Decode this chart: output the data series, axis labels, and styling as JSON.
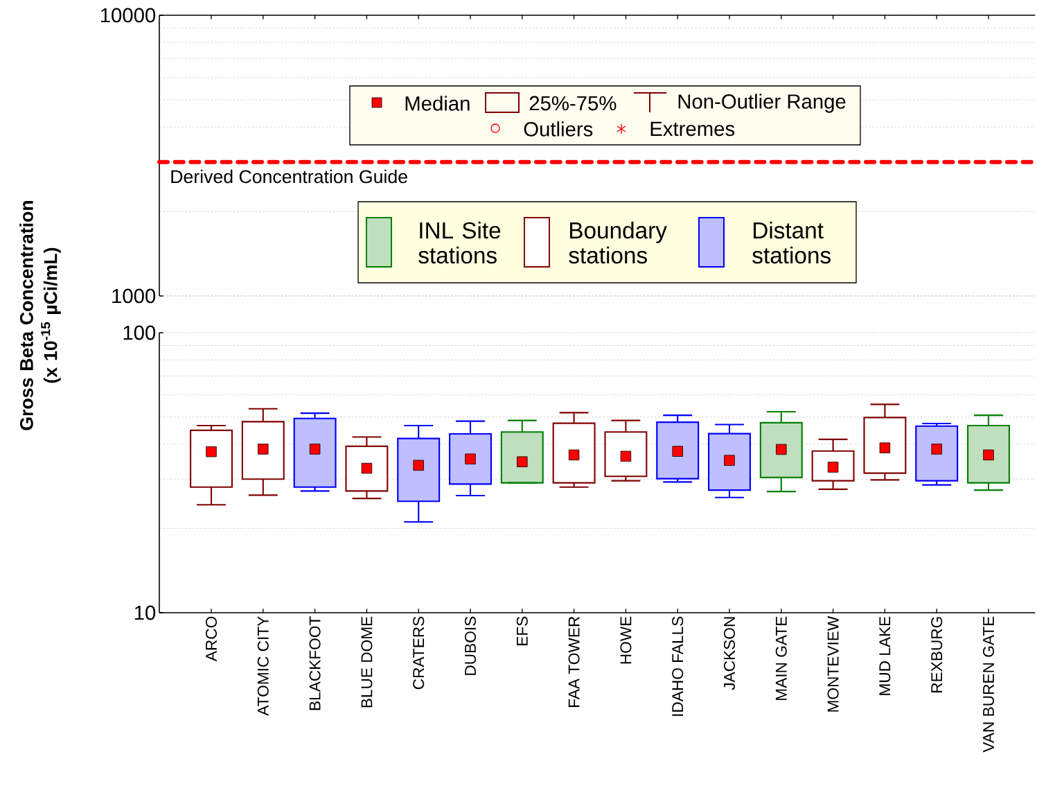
{
  "chart_data": [
    {
      "type": "box",
      "categories": [
        null,
        null,
        null,
        null,
        null,
        null,
        null,
        null,
        null,
        null,
        null,
        null,
        null,
        null,
        null,
        null
      ],
      "ylim": [
        1000,
        10000
      ],
      "yticks": [
        1000,
        10000
      ],
      "log": true,
      "grid": true,
      "tick_labels": "y",
      "ref_lines": [
        {
          "axis": "y",
          "value": 3000,
          "label": "Derived Concentration Guide",
          "color": "#ff0000",
          "line_style": "dashed"
        }
      ],
      "annotations": [
        "Median",
        "25%-75%",
        "Non-Outlier Range",
        "Outliers",
        "Extremes"
      ]
    },
    {
      "type": "box",
      "ylabel": "Gross Beta Concentration (x 10$^{-15}$ µCi/mL)",
      "categories": [
        "ARCO",
        "ATOMIC CITY",
        "BLACKFOOT",
        "BLUE DOME",
        "CRATERS",
        "DUBOIS",
        "EFS",
        "FAA TOWER",
        "HOWE",
        "IDAHO FALLS",
        "JACKSON",
        "MAIN GATE",
        "MONTEVIEW",
        "MUD LAKE",
        "REXBURG",
        "VAN BUREN GATE"
      ],
      "ylim": [
        10,
        100
      ],
      "yticks": [
        10,
        100
      ],
      "log": true,
      "grid": true,
      "legend": "top",
      "marker": "square",
      "series": [
        {
          "name": "INL Site stations",
          "color": "#008000",
          "boxes": [
            null,
            null,
            null,
            null,
            null,
            null,
            {
              "low": 29.1,
              "q1": 29.1,
              "median": 34.6,
              "q3": 44.2,
              "high": 48.6
            },
            null,
            null,
            null,
            null,
            {
              "low": 27.1,
              "q1": 30.4,
              "median": 38.3,
              "q3": 47.7,
              "high": 52.2
            },
            null,
            null,
            null,
            {
              "low": 27.4,
              "q1": 29.1,
              "median": 36.6,
              "q3": 46.6,
              "high": 50.7
            }
          ]
        },
        {
          "name": "Boundary stations",
          "color": "#800000",
          "boxes": [
            {
              "low": 24.3,
              "q1": 28.1,
              "median": 37.6,
              "q3": 44.8,
              "high": 46.6
            },
            {
              "low": 26.3,
              "q1": 30.0,
              "median": 38.4,
              "q3": 48.1,
              "high": 53.5
            },
            null,
            {
              "low": 25.6,
              "q1": 27.2,
              "median": 32.8,
              "q3": 39.3,
              "high": 42.4
            },
            null,
            null,
            null,
            {
              "low": 28.1,
              "q1": 29.1,
              "median": 36.6,
              "q3": 47.5,
              "high": 51.8
            },
            {
              "low": 29.6,
              "q1": 30.7,
              "median": 36.2,
              "q3": 44.2,
              "high": 48.6
            },
            null,
            null,
            null,
            {
              "low": 27.6,
              "q1": 29.6,
              "median": 33.1,
              "q3": 37.8,
              "high": 41.6
            },
            {
              "low": 29.8,
              "q1": 31.5,
              "median": 38.8,
              "q3": 49.8,
              "high": 55.5
            },
            null,
            null
          ]
        },
        {
          "name": "Distant stations",
          "color": "#0000ff",
          "boxes": [
            null,
            null,
            {
              "low": 27.2,
              "q1": 28.1,
              "median": 38.4,
              "q3": 49.4,
              "high": 51.6
            },
            null,
            {
              "low": 21.1,
              "q1": 25.0,
              "median": 33.6,
              "q3": 41.9,
              "high": 46.6
            },
            {
              "low": 26.2,
              "q1": 28.8,
              "median": 35.4,
              "q3": 43.5,
              "high": 48.3
            },
            null,
            null,
            null,
            {
              "low": 29.3,
              "q1": 30.1,
              "median": 37.7,
              "q3": 47.9,
              "high": 50.7
            },
            {
              "low": 25.8,
              "q1": 27.4,
              "median": 35.0,
              "q3": 43.6,
              "high": 47.0
            },
            null,
            null,
            null,
            {
              "low": 28.6,
              "q1": 29.6,
              "median": 38.4,
              "q3": 46.4,
              "high": 47.4
            },
            null
          ]
        }
      ]
    }
  ]
}
